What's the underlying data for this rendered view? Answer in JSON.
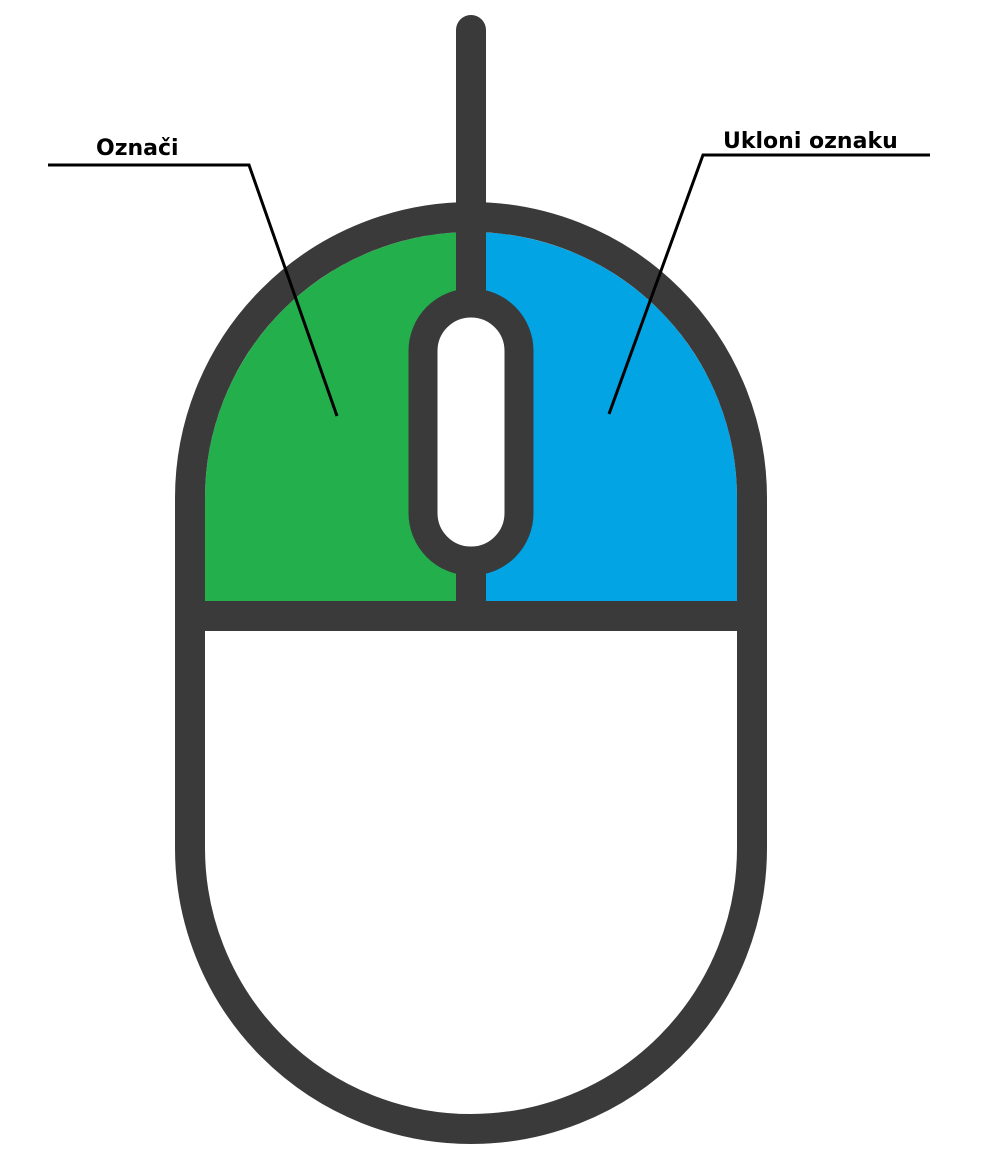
{
  "diagram": {
    "left_button": {
      "label": "Označi",
      "color": "#23b04c"
    },
    "right_button": {
      "label": "Ukloni oznaku",
      "color": "#02a4e4"
    },
    "outline_color": "#3a3a3a",
    "background_color": "#ffffff"
  }
}
